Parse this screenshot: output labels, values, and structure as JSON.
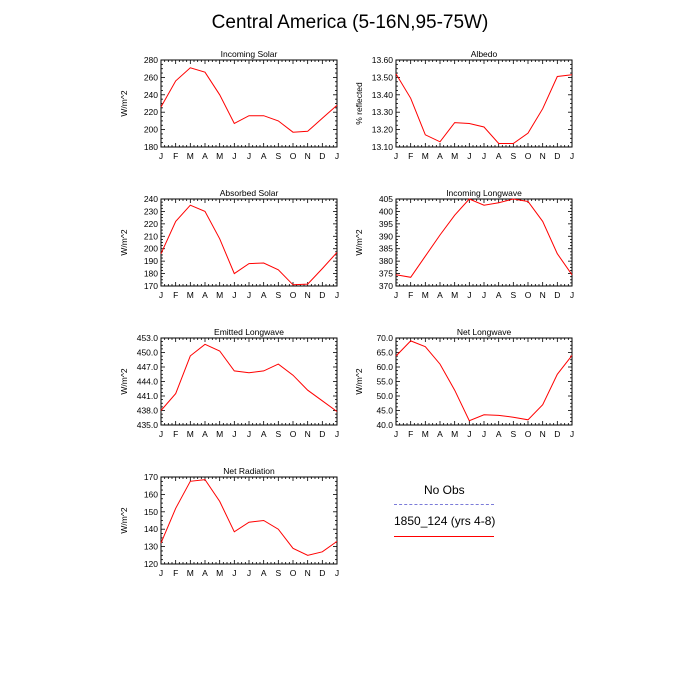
{
  "title": "Central America (5-16N,95-75W)",
  "legend": {
    "items": [
      {
        "label": "No Obs",
        "color": "#7b7bd9",
        "dash": "dashed"
      },
      {
        "label": "1850_124 (yrs 4-8)",
        "color": "#ff0000",
        "dash": "solid"
      }
    ]
  },
  "chart_data": [
    {
      "type": "line",
      "title": "Incoming Solar",
      "ylabel": "W/m^2",
      "ylim": [
        180,
        280
      ],
      "yticks": [
        180,
        200,
        220,
        240,
        260,
        280
      ],
      "ytick_labels": [
        "180",
        "200",
        "220",
        "240",
        "260",
        "280"
      ],
      "categories": [
        "J",
        "F",
        "M",
        "A",
        "M",
        "J",
        "J",
        "A",
        "S",
        "O",
        "N",
        "D",
        "J"
      ],
      "series": [
        {
          "name": "1850_124 (yrs 4-8)",
          "color": "#ff0000",
          "values": [
            226,
            256,
            271,
            266,
            240,
            207,
            216,
            216,
            210,
            197,
            198,
            213,
            228
          ]
        }
      ]
    },
    {
      "type": "line",
      "title": "Albedo",
      "ylabel": "% reflected",
      "ylim": [
        13.1,
        13.6
      ],
      "yticks": [
        13.1,
        13.2,
        13.3,
        13.4,
        13.5,
        13.6
      ],
      "ytick_labels": [
        "13.10",
        "13.20",
        "13.30",
        "13.40",
        "13.50",
        "13.60"
      ],
      "categories": [
        "J",
        "F",
        "M",
        "A",
        "M",
        "J",
        "J",
        "A",
        "S",
        "O",
        "N",
        "D",
        "J"
      ],
      "series": [
        {
          "name": "1850_124 (yrs 4-8)",
          "color": "#ff0000",
          "values": [
            13.52,
            13.38,
            13.17,
            13.13,
            13.24,
            13.235,
            13.215,
            13.12,
            13.12,
            13.18,
            13.32,
            13.505,
            13.515
          ]
        }
      ]
    },
    {
      "type": "line",
      "title": "Absorbed Solar",
      "ylabel": "W/m^2",
      "ylim": [
        170,
        240
      ],
      "yticks": [
        170,
        180,
        190,
        200,
        210,
        220,
        230,
        240
      ],
      "ytick_labels": [
        "170",
        "180",
        "190",
        "200",
        "210",
        "220",
        "230",
        "240"
      ],
      "categories": [
        "J",
        "F",
        "M",
        "A",
        "M",
        "J",
        "J",
        "A",
        "S",
        "O",
        "N",
        "D",
        "J"
      ],
      "series": [
        {
          "name": "1850_124 (yrs 4-8)",
          "color": "#ff0000",
          "values": [
            196,
            222,
            235,
            230,
            208,
            180,
            188,
            188.5,
            183,
            171,
            171.5,
            184,
            197
          ]
        }
      ]
    },
    {
      "type": "line",
      "title": "Incoming Longwave",
      "ylabel": "W/m^2",
      "ylim": [
        370,
        405
      ],
      "yticks": [
        370,
        375,
        380,
        385,
        390,
        395,
        400,
        405
      ],
      "ytick_labels": [
        "370",
        "375",
        "380",
        "385",
        "390",
        "395",
        "400",
        "405"
      ],
      "categories": [
        "J",
        "F",
        "M",
        "A",
        "M",
        "J",
        "J",
        "A",
        "S",
        "O",
        "N",
        "D",
        "J"
      ],
      "series": [
        {
          "name": "1850_124 (yrs 4-8)",
          "color": "#ff0000",
          "values": [
            374.5,
            373.5,
            382,
            390.5,
            398.5,
            405,
            402.5,
            403.5,
            405,
            404,
            396,
            383,
            374.5
          ]
        }
      ]
    },
    {
      "type": "line",
      "title": "Emitted Longwave",
      "ylabel": "W/m^2",
      "ylim": [
        435.0,
        453.0
      ],
      "yticks": [
        435,
        438,
        441,
        444,
        447,
        450,
        453
      ],
      "ytick_labels": [
        "435.0",
        "438.0",
        "441.0",
        "444.0",
        "447.0",
        "450.0",
        "453.0"
      ],
      "categories": [
        "J",
        "F",
        "M",
        "A",
        "M",
        "J",
        "J",
        "A",
        "S",
        "O",
        "N",
        "D",
        "J"
      ],
      "series": [
        {
          "name": "1850_124 (yrs 4-8)",
          "color": "#ff0000",
          "values": [
            438.0,
            441.5,
            449.3,
            451.7,
            450.3,
            446.2,
            445.8,
            446.2,
            447.6,
            445.3,
            442.2,
            440.0,
            437.8
          ]
        }
      ]
    },
    {
      "type": "line",
      "title": "Net Longwave",
      "ylabel": "W/m^2",
      "ylim": [
        40.0,
        70.0
      ],
      "yticks": [
        40,
        45,
        50,
        55,
        60,
        65,
        70
      ],
      "ytick_labels": [
        "40.0",
        "45.0",
        "50.0",
        "55.0",
        "60.0",
        "65.0",
        "70.0"
      ],
      "categories": [
        "J",
        "F",
        "M",
        "A",
        "M",
        "J",
        "J",
        "A",
        "S",
        "O",
        "N",
        "D",
        "J"
      ],
      "series": [
        {
          "name": "1850_124 (yrs 4-8)",
          "color": "#ff0000",
          "values": [
            63.8,
            69.0,
            67.0,
            61.0,
            52.0,
            41.5,
            43.5,
            43.3,
            42.7,
            41.8,
            47.0,
            57.5,
            64.0
          ]
        }
      ]
    },
    {
      "type": "line",
      "title": "Net Radiation",
      "ylabel": "W/m^2",
      "ylim": [
        120,
        170
      ],
      "yticks": [
        120,
        130,
        140,
        150,
        160,
        170
      ],
      "ytick_labels": [
        "120",
        "130",
        "140",
        "150",
        "160",
        "170"
      ],
      "categories": [
        "J",
        "F",
        "M",
        "A",
        "M",
        "J",
        "J",
        "A",
        "S",
        "O",
        "N",
        "D",
        "J"
      ],
      "series": [
        {
          "name": "1850_124 (yrs 4-8)",
          "color": "#ff0000",
          "values": [
            132,
            152,
            167.5,
            168.5,
            156,
            138.5,
            144,
            145,
            140,
            129,
            125,
            127,
            133
          ]
        }
      ]
    }
  ]
}
